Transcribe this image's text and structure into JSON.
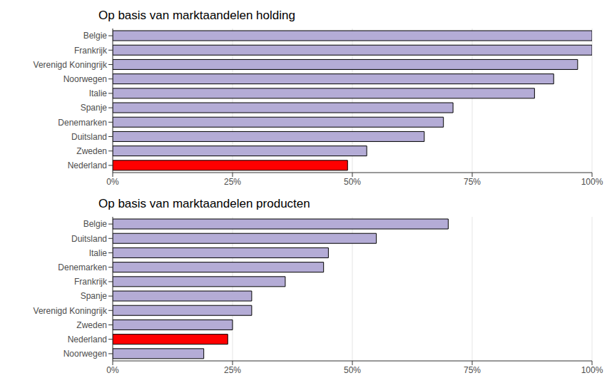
{
  "chart_data": [
    {
      "type": "bar",
      "title": "Op basis van marktaandelen holding",
      "orientation": "horizontal",
      "categories": [
        "Belgie",
        "Frankrijk",
        "Verenigd Koningrijk",
        "Noorwegen",
        "Italie",
        "Spanje",
        "Denemarken",
        "Duitsland",
        "Zweden",
        "Nederland"
      ],
      "values": [
        100,
        100,
        97,
        92,
        88,
        71,
        69,
        65,
        53,
        49
      ],
      "colors": [
        "#b4acd6",
        "#b4acd6",
        "#b4acd6",
        "#b4acd6",
        "#b4acd6",
        "#b4acd6",
        "#b4acd6",
        "#b4acd6",
        "#b4acd6",
        "#ff0000"
      ],
      "xlim": [
        0,
        100
      ],
      "xticks": [
        {
          "value": 0,
          "label": "0%"
        },
        {
          "value": 25,
          "label": "25%"
        },
        {
          "value": 50,
          "label": "50%"
        },
        {
          "value": 75,
          "label": "75%"
        },
        {
          "value": 100,
          "label": "100%"
        }
      ],
      "grid": true
    },
    {
      "type": "bar",
      "title": "Op basis van marktaandelen producten",
      "orientation": "horizontal",
      "categories": [
        "Belgie",
        "Duitsland",
        "Italie",
        "Denemarken",
        "Frankrijk",
        "Spanje",
        "Verenigd Koningrijk",
        "Zweden",
        "Nederland",
        "Noorwegen"
      ],
      "values": [
        70,
        55,
        45,
        44,
        36,
        29,
        29,
        25,
        24,
        19
      ],
      "colors": [
        "#b4acd6",
        "#b4acd6",
        "#b4acd6",
        "#b4acd6",
        "#b4acd6",
        "#b4acd6",
        "#b4acd6",
        "#b4acd6",
        "#ff0000",
        "#b4acd6"
      ],
      "xlim": [
        0,
        100
      ],
      "xticks": [
        {
          "value": 0,
          "label": "0%"
        },
        {
          "value": 25,
          "label": "25%"
        },
        {
          "value": 50,
          "label": "50%"
        },
        {
          "value": 75,
          "label": "75%"
        },
        {
          "value": 100,
          "label": "100%"
        }
      ],
      "grid": true
    }
  ]
}
